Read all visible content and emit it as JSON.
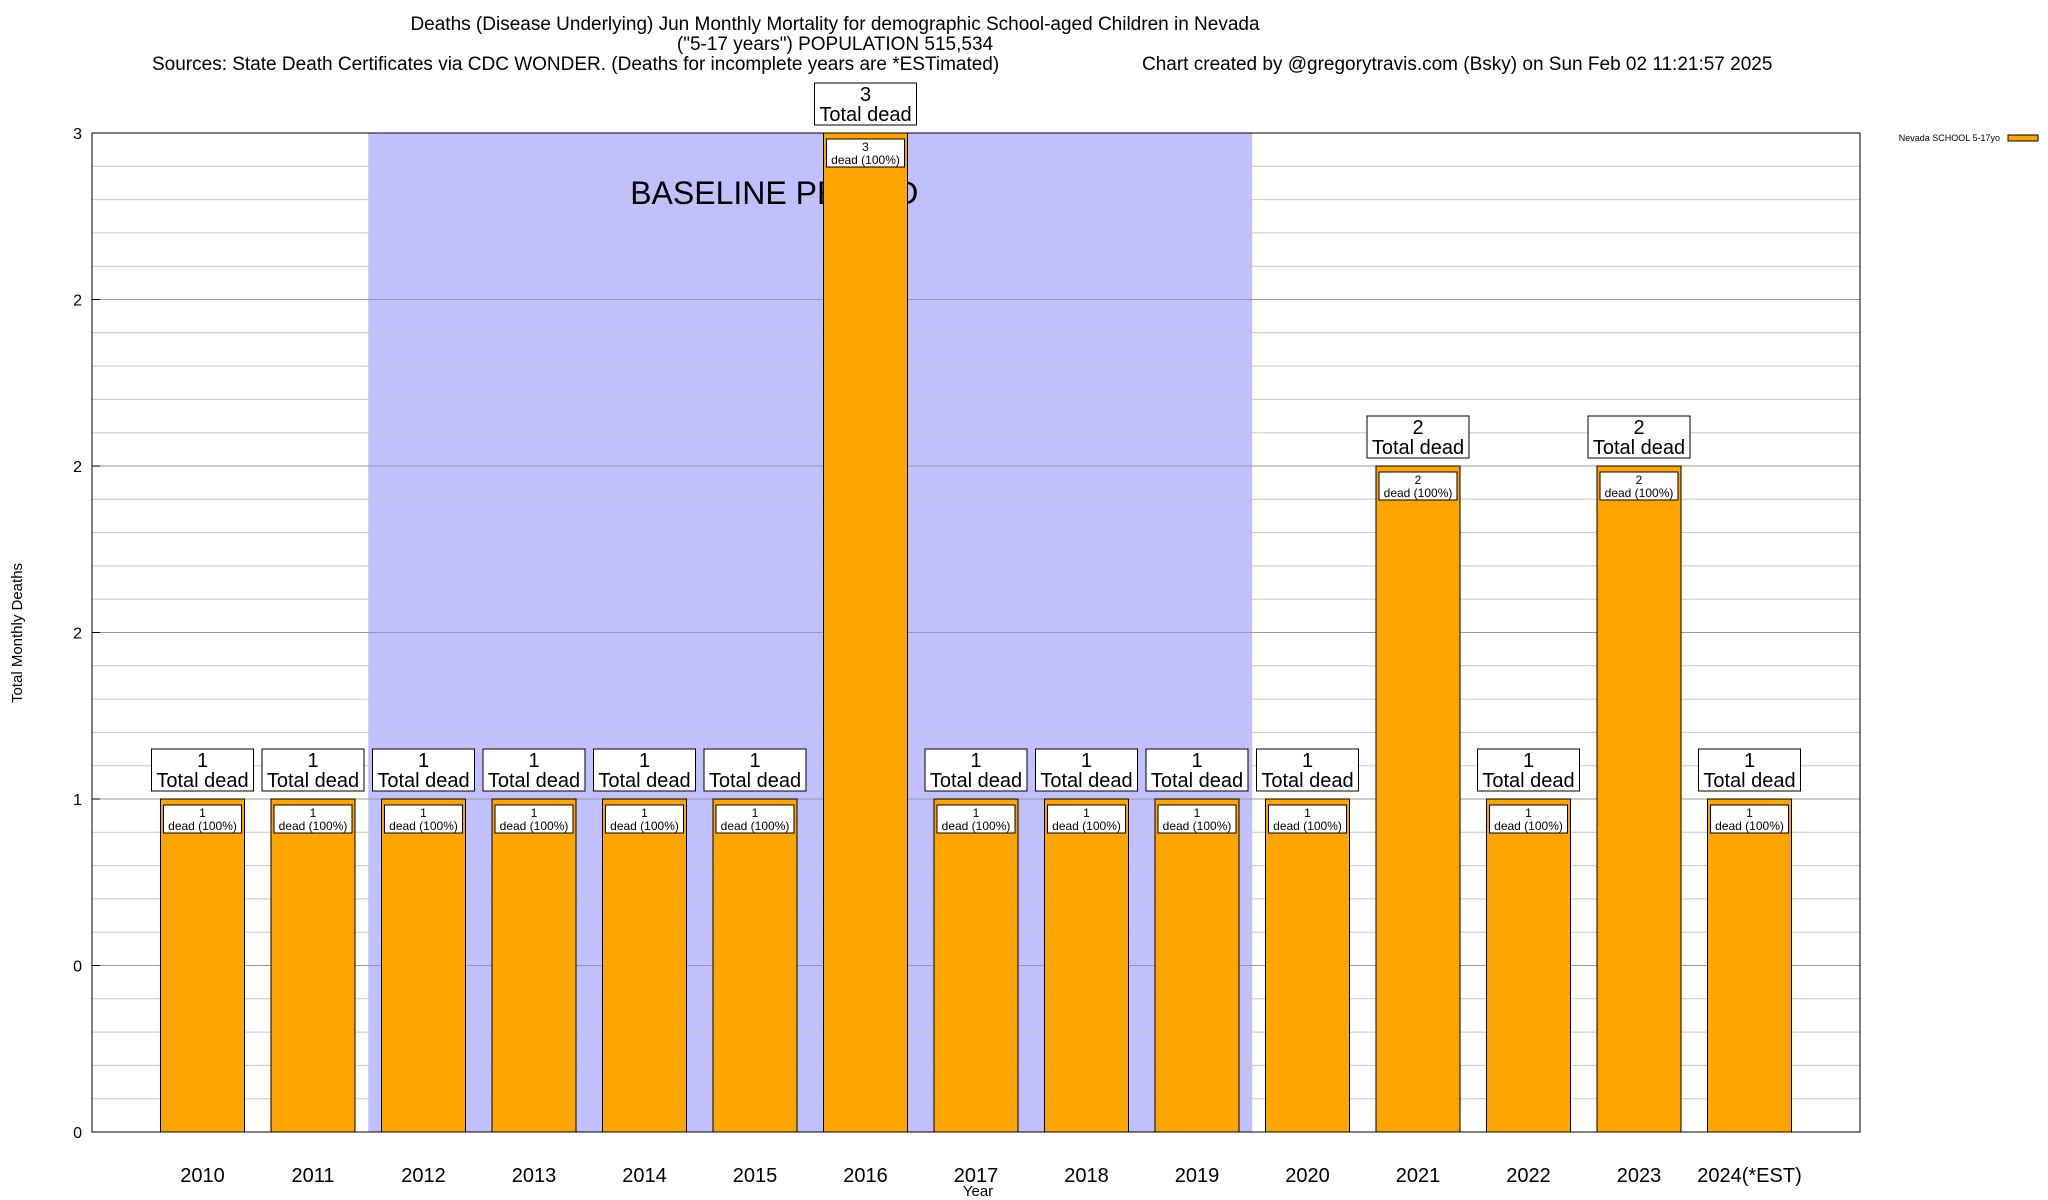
{
  "chart_data": {
    "type": "bar",
    "title_line1": "Deaths (Disease Underlying) Jun Monthly Mortality for demographic School-aged Children in Nevada",
    "title_line2": "(\"5-17 years\") POPULATION 515,534",
    "sources": "Sources: State Death Certificates via CDC WONDER. (Deaths for incomplete years are *ESTimated)",
    "credit": "Chart created by @gregorytravis.com (Bsky) on Sun Feb 02 11:21:57 2025",
    "xlabel": "Year",
    "ylabel": "Total Monthly Deaths",
    "ylim": [
      0,
      3
    ],
    "y_tick_labels": [
      "0",
      "0",
      "1",
      "2",
      "2",
      "2",
      "3"
    ],
    "categories": [
      "2010",
      "2011",
      "2012",
      "2013",
      "2014",
      "2015",
      "2016",
      "2017",
      "2018",
      "2019",
      "2020",
      "2021",
      "2022",
      "2023",
      "2024(*EST)"
    ],
    "series": [
      {
        "name": "Nevada SCHOOL 5-17yo",
        "color": "#ffa500",
        "values": [
          1,
          1,
          1,
          1,
          1,
          1,
          3,
          1,
          1,
          1,
          1,
          2,
          1,
          2,
          1
        ]
      }
    ],
    "inner_label_suffix": "dead (100%)",
    "total_label_suffix": "Total dead",
    "baseline": {
      "label": "BASELINE PERIOD",
      "from": "2012",
      "to": "2019",
      "color": "#c0c0ff"
    },
    "legend_position": "top-right",
    "grid": true
  }
}
